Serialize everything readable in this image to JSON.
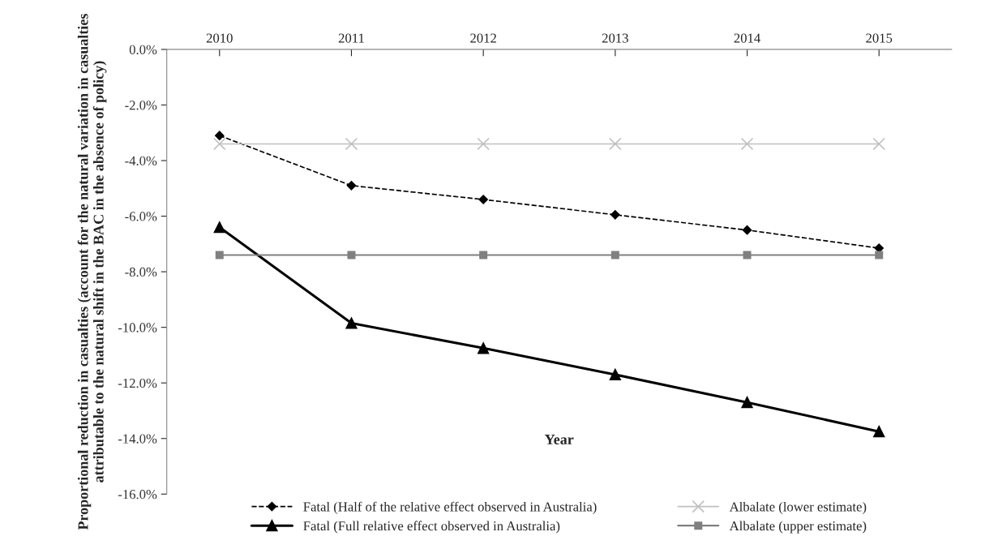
{
  "chart_data": {
    "type": "line",
    "xlabel": "Year",
    "ylabel": "Proportional reduction in casualties (account for the natural variation in casualties attributable to the natural shift in the BAC in the absence of policy)",
    "categories": [
      "2010",
      "2011",
      "2012",
      "2013",
      "2014",
      "2015"
    ],
    "ylim": [
      -16,
      0
    ],
    "yticks": [
      {
        "value": -16,
        "label": "-16.0%"
      },
      {
        "value": -14,
        "label": "-14.0%"
      },
      {
        "value": -12,
        "label": "-12.0%"
      },
      {
        "value": -10,
        "label": "-10.0%"
      },
      {
        "value": -8,
        "label": "-8.0%"
      },
      {
        "value": -6,
        "label": "-6.0%"
      },
      {
        "value": -4,
        "label": "-4.0%"
      },
      {
        "value": -2,
        "label": "-2.0%"
      },
      {
        "value": 0,
        "label": "0.0%"
      }
    ],
    "grid": false,
    "legend": "bottom",
    "series": [
      {
        "name": "Fatal (Half of the relative effect observed in Australia)",
        "color": "#000000",
        "marker": "diamond",
        "line_style": "dashed",
        "values": [
          -3.1,
          -4.9,
          -5.4,
          -5.95,
          -6.5,
          -7.15
        ]
      },
      {
        "name": "Fatal (Full relative effect observed in Australia)",
        "color": "#000000",
        "marker": "triangle",
        "line_style": "solid",
        "values": [
          -6.4,
          -9.85,
          -10.75,
          -11.7,
          -12.7,
          -13.75
        ]
      },
      {
        "name": "Albalate (lower estimate)",
        "color": "#c0c0c0",
        "marker": "cross",
        "line_style": "solid",
        "values": [
          -3.4,
          -3.4,
          -3.4,
          -3.4,
          -3.4,
          -3.4
        ]
      },
      {
        "name": "Albalate (upper estimate)",
        "color": "#808080",
        "marker": "square",
        "line_style": "solid",
        "values": [
          -7.4,
          -7.4,
          -7.4,
          -7.4,
          -7.4,
          -7.4
        ]
      }
    ]
  }
}
